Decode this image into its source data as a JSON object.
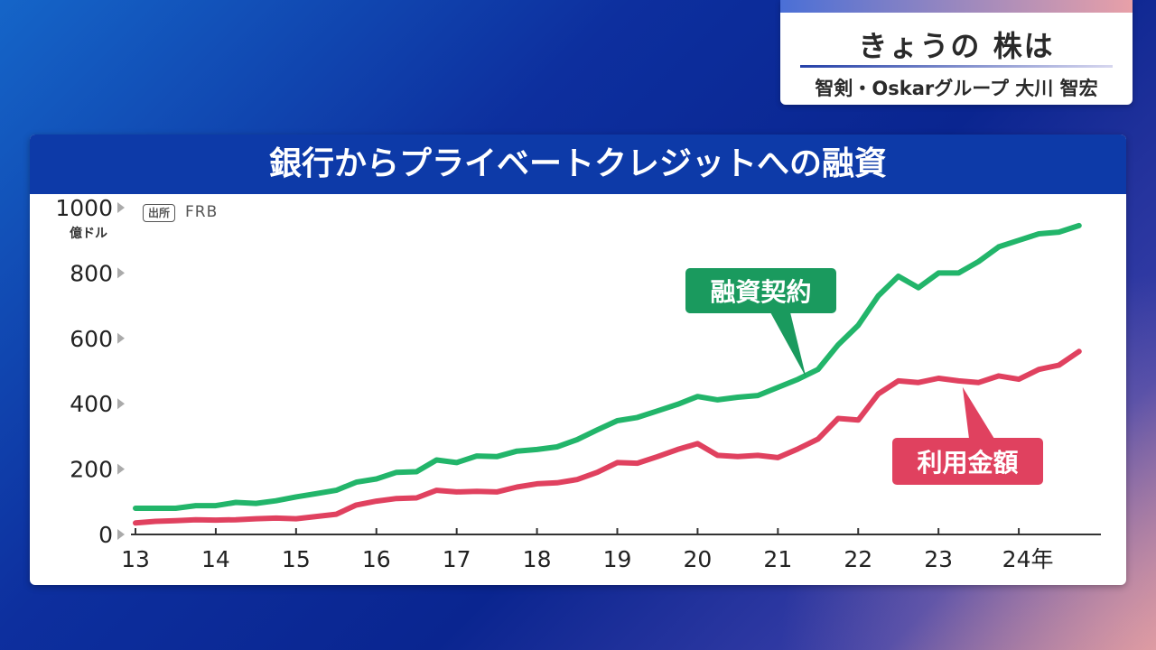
{
  "corner": {
    "title": "きょうの 株は",
    "subtitle": "智剣・Oskarグループ 大川 智宏"
  },
  "panel": {
    "title": "銀行からプライベートクレジットへの融資",
    "source_label": "出所",
    "source_value": "FRB",
    "unit": "億ドル"
  },
  "colors": {
    "header_bg": "#0d3aa8",
    "green": "#22b56a",
    "green_label": "#1a9a5e",
    "red": "#e0415f",
    "red_label": "#e0415f"
  },
  "chart_data": {
    "type": "line",
    "title": "銀行からプライベートクレジットへの融資",
    "ylabel": "億ドル",
    "ylim": [
      0,
      1000
    ],
    "yticks": [
      0,
      200,
      400,
      600,
      800,
      1000
    ],
    "xlim": [
      13,
      25
    ],
    "xticks": [
      "13",
      "14",
      "15",
      "16",
      "17",
      "18",
      "19",
      "20",
      "21",
      "22",
      "23",
      "24年"
    ],
    "x": [
      13.0,
      13.25,
      13.5,
      13.75,
      14.0,
      14.25,
      14.5,
      14.75,
      15.0,
      15.25,
      15.5,
      15.75,
      16.0,
      16.25,
      16.5,
      16.75,
      17.0,
      17.25,
      17.5,
      17.75,
      18.0,
      18.25,
      18.5,
      18.75,
      19.0,
      19.25,
      19.5,
      19.75,
      20.0,
      20.25,
      20.5,
      20.75,
      21.0,
      21.25,
      21.5,
      21.75,
      22.0,
      22.25,
      22.5,
      22.75,
      23.0,
      23.25,
      23.5,
      23.75,
      24.0,
      24.25,
      24.5,
      24.75
    ],
    "series": [
      {
        "name": "融資契約",
        "values": [
          80,
          80,
          80,
          88,
          88,
          98,
          95,
          103,
          115,
          125,
          135,
          160,
          170,
          190,
          192,
          228,
          220,
          240,
          238,
          255,
          260,
          268,
          290,
          320,
          348,
          358,
          378,
          398,
          422,
          412,
          420,
          425,
          450,
          475,
          505,
          580,
          640,
          730,
          790,
          755,
          800,
          800,
          835,
          880,
          900,
          920,
          925,
          945
        ]
      },
      {
        "name": "利用金額",
        "values": [
          35,
          40,
          42,
          45,
          44,
          45,
          48,
          50,
          48,
          55,
          62,
          90,
          102,
          110,
          112,
          135,
          130,
          132,
          130,
          145,
          155,
          158,
          168,
          190,
          220,
          218,
          238,
          260,
          278,
          242,
          238,
          242,
          235,
          262,
          292,
          355,
          350,
          430,
          470,
          465,
          478,
          470,
          465,
          485,
          475,
          505,
          518,
          560
        ]
      }
    ],
    "annotations": [
      {
        "text": "融資契約",
        "series": "融資契約"
      },
      {
        "text": "利用金額",
        "series": "利用金額"
      }
    ]
  }
}
